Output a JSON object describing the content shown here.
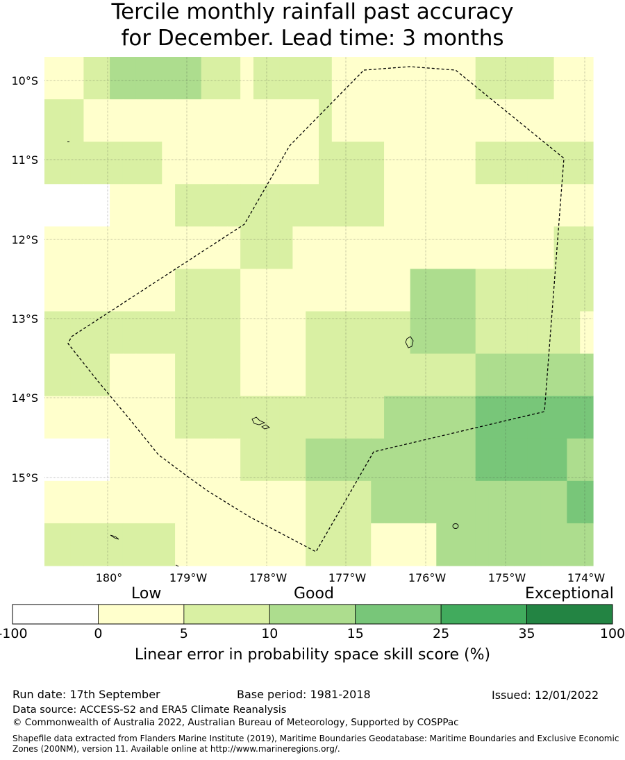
{
  "title": {
    "line1": "Tercile monthly rainfall past accuracy",
    "line2": "for December. Lead time: 3 months"
  },
  "map": {
    "lat_labels": [
      "10°S",
      "11°S",
      "12°S",
      "13°S",
      "14°S",
      "15°S"
    ],
    "lon_labels": [
      "180°",
      "179°W",
      "178°W",
      "177°W",
      "176°W",
      "175°W",
      "174°W"
    ],
    "grid": {
      "rows": [
        [
          1,
          1,
          1,
          2,
          2,
          3,
          3,
          3,
          3,
          3,
          3,
          3,
          2,
          2,
          2,
          1,
          2,
          2,
          2,
          2,
          2,
          2,
          1,
          1,
          1,
          1,
          1,
          1,
          1,
          1,
          1,
          1,
          1,
          2,
          2,
          2,
          2,
          2,
          2,
          1,
          1,
          1
        ],
        [
          2,
          2,
          2,
          1,
          1,
          1,
          1,
          1,
          1,
          1,
          1,
          1,
          1,
          1,
          1,
          1,
          1,
          1,
          1,
          1,
          1,
          2,
          1,
          1,
          1,
          1,
          1,
          1,
          1,
          1,
          1,
          1,
          1,
          1,
          1,
          1,
          1,
          1,
          1,
          1,
          1,
          1
        ],
        [
          2,
          2,
          2,
          2,
          2,
          2,
          2,
          2,
          2,
          1,
          1,
          1,
          1,
          1,
          1,
          1,
          1,
          1,
          1,
          1,
          1,
          2,
          2,
          2,
          2,
          2,
          1,
          1,
          1,
          1,
          1,
          1,
          1,
          2,
          2,
          2,
          2,
          2,
          2,
          2,
          2,
          2
        ],
        [
          0,
          0,
          0,
          0,
          0,
          1,
          1,
          1,
          1,
          1,
          2,
          2,
          2,
          2,
          2,
          2,
          2,
          2,
          2,
          2,
          2,
          2,
          2,
          2,
          2,
          2,
          1,
          1,
          1,
          1,
          1,
          1,
          1,
          1,
          1,
          1,
          1,
          1,
          1,
          1,
          1,
          1
        ],
        [
          1,
          1,
          1,
          1,
          1,
          1,
          1,
          1,
          1,
          1,
          1,
          1,
          1,
          1,
          1,
          2,
          2,
          2,
          2,
          1,
          1,
          1,
          1,
          1,
          1,
          1,
          1,
          1,
          1,
          1,
          1,
          1,
          1,
          1,
          1,
          1,
          1,
          1,
          1,
          2,
          2,
          2
        ],
        [
          1,
          1,
          1,
          1,
          1,
          1,
          1,
          1,
          1,
          1,
          2,
          2,
          2,
          2,
          2,
          1,
          1,
          1,
          1,
          1,
          1,
          1,
          1,
          1,
          1,
          1,
          1,
          1,
          3,
          3,
          3,
          3,
          3,
          2,
          2,
          2,
          2,
          2,
          2,
          2,
          2,
          2
        ],
        [
          2,
          2,
          2,
          2,
          2,
          2,
          2,
          2,
          2,
          2,
          2,
          2,
          2,
          2,
          2,
          1,
          1,
          1,
          1,
          1,
          2,
          2,
          2,
          2,
          2,
          2,
          2,
          2,
          3,
          3,
          3,
          3,
          3,
          2,
          2,
          2,
          2,
          2,
          2,
          2,
          2,
          1
        ],
        [
          2,
          2,
          2,
          2,
          2,
          1,
          1,
          1,
          1,
          1,
          2,
          2,
          2,
          2,
          2,
          1,
          1,
          1,
          1,
          1,
          2,
          2,
          2,
          2,
          2,
          2,
          2,
          2,
          2,
          2,
          2,
          2,
          2,
          3,
          3,
          3,
          3,
          3,
          3,
          3,
          3,
          3
        ],
        [
          1,
          1,
          1,
          1,
          1,
          1,
          1,
          1,
          1,
          1,
          2,
          2,
          2,
          2,
          2,
          2,
          2,
          2,
          2,
          2,
          2,
          2,
          2,
          2,
          2,
          2,
          3,
          3,
          3,
          3,
          3,
          3,
          3,
          4,
          4,
          4,
          4,
          4,
          4,
          4,
          4,
          4
        ],
        [
          0,
          0,
          0,
          0,
          0,
          1,
          1,
          1,
          1,
          1,
          1,
          1,
          1,
          1,
          1,
          2,
          2,
          2,
          2,
          2,
          3,
          3,
          3,
          3,
          3,
          3,
          3,
          3,
          3,
          3,
          3,
          3,
          3,
          4,
          4,
          4,
          4,
          4,
          4,
          4,
          3,
          3
        ],
        [
          1,
          1,
          1,
          1,
          1,
          1,
          1,
          1,
          1,
          1,
          1,
          1,
          1,
          1,
          1,
          1,
          1,
          1,
          1,
          1,
          2,
          2,
          2,
          2,
          2,
          3,
          3,
          3,
          3,
          3,
          3,
          3,
          3,
          3,
          3,
          3,
          3,
          3,
          3,
          3,
          4,
          4
        ],
        [
          2,
          2,
          2,
          2,
          2,
          2,
          2,
          2,
          2,
          2,
          1,
          1,
          1,
          1,
          1,
          1,
          1,
          1,
          1,
          1,
          2,
          2,
          2,
          2,
          2,
          1,
          1,
          1,
          1,
          1,
          3,
          3,
          3,
          3,
          3,
          3,
          3,
          3,
          3,
          3,
          3,
          3
        ]
      ]
    }
  },
  "categories": {
    "low": "Low",
    "good": "Good",
    "exceptional": "Exceptional"
  },
  "colorbar": {
    "ticks": [
      "-100",
      "0",
      "5",
      "10",
      "15",
      "25",
      "35",
      "100"
    ],
    "colors": [
      "#ffffff",
      "#ffffcc",
      "#d9f0a3",
      "#addd8e",
      "#78c679",
      "#41ab5d",
      "#238443"
    ],
    "label": "Linear error in probability space skill score (%)"
  },
  "footer": {
    "run_date": "Run date: 17th September",
    "base_period": "Base period: 1981-2018",
    "issued": "Issued: 12/01/2022",
    "data_source": "Data source: ACCESS-S2 and ERA5 Climate Reanalysis",
    "copyright": "© Commonwealth of Australia 2022, Australian Bureau of Meteorology, Supported by COSPPac",
    "shapefile": "Shapefile data extracted from Flanders Marine Institute (2019), Maritime Boundaries Geodatabase: Maritime Boundaries and Exclusive Economic Zones (200NM), version 11. Available online at http://www.marineregions.org/."
  }
}
